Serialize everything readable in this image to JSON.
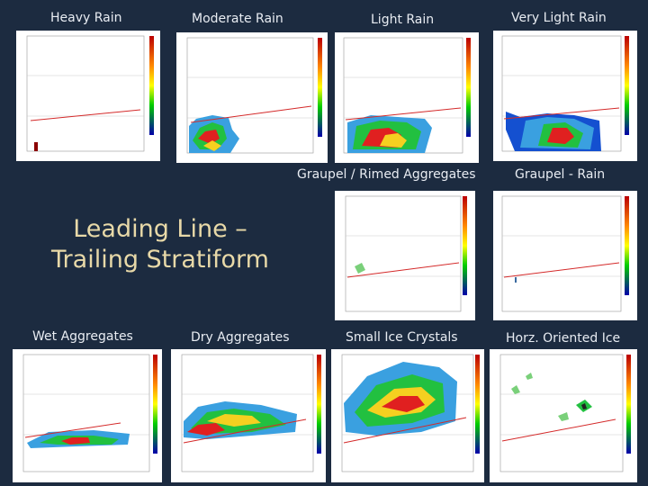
{
  "title": {
    "line1": "Leading Line –",
    "line2": "Trailing Stratiform"
  },
  "panels": [
    {
      "id": "heavy-rain",
      "label": "Heavy Rain"
    },
    {
      "id": "moderate-rain",
      "label": "Moderate Rain"
    },
    {
      "id": "light-rain",
      "label": "Light Rain"
    },
    {
      "id": "very-light-rain",
      "label": "Very Light Rain"
    },
    {
      "id": "graupel-rimed",
      "label": "Graupel / Rimed Aggregates"
    },
    {
      "id": "graupel-rain",
      "label": "Graupel - Rain"
    },
    {
      "id": "wet-aggregates",
      "label": "Wet Aggregates"
    },
    {
      "id": "dry-aggregates",
      "label": "Dry Aggregates"
    },
    {
      "id": "small-ice",
      "label": "Small Ice Crystals"
    },
    {
      "id": "horz-ice",
      "label": "Horz. Oriented Ice"
    }
  ],
  "colors": {
    "background": "#1c2b40",
    "title": "#e8d9a8",
    "label": "#e8ecf2",
    "melting_line": "#d42a2a"
  }
}
